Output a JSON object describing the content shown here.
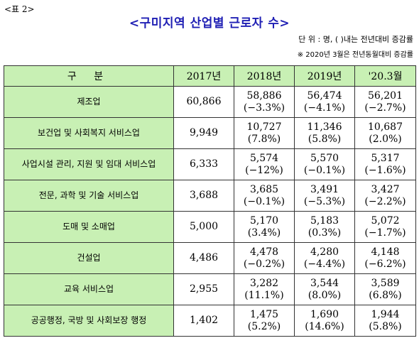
{
  "doc": {
    "label": "<표 2>",
    "title": "<구미지역 산업별 근로자 수>",
    "unit": "단 위 : 명, ( )내는 전년대비 증감률",
    "note": "※ 2020년 3월은 전년동월대비 증감률"
  },
  "table": {
    "headers": [
      "구 분",
      "2017년",
      "2018년",
      "2019년",
      "'20.3월"
    ],
    "rows": [
      {
        "category": "제조업",
        "v2017": "60,866",
        "v2018": "58,886",
        "c2018": "(−3.3%)",
        "v2019": "56,474",
        "c2019": "(−4.1%)",
        "v2020": "56,201",
        "c2020": "(−2.7%)"
      },
      {
        "category": "보건업 및 사회복지 서비스업",
        "v2017": "9,949",
        "v2018": "10,727",
        "c2018": "(7.8%)",
        "v2019": "11,346",
        "c2019": "(5.8%)",
        "v2020": "10,687",
        "c2020": "(2.0%)"
      },
      {
        "category": "사업시설 관리, 지원 및 임대 서비스업",
        "v2017": "6,333",
        "v2018": "5,574",
        "c2018": "(−12%)",
        "v2019": "5,570",
        "c2019": "(−0.1%)",
        "v2020": "5,317",
        "c2020": "(−1.6%)"
      },
      {
        "category": "전문, 과학 및 기술 서비스업",
        "v2017": "3,688",
        "v2018": "3,685",
        "c2018": "(−0.1%)",
        "v2019": "3,491",
        "c2019": "(−5.3%)",
        "v2020": "3,427",
        "c2020": "(−2.2%)"
      },
      {
        "category": "도매 및 소매업",
        "v2017": "5,000",
        "v2018": "5,170",
        "c2018": "(3.4%)",
        "v2019": "5,183",
        "c2019": "(0.3%)",
        "v2020": "5,072",
        "c2020": "(−1.7%)"
      },
      {
        "category": "건설업",
        "v2017": "4,486",
        "v2018": "4,478",
        "c2018": "(−0.2%)",
        "v2019": "4,280",
        "c2019": "(−4.4%)",
        "v2020": "4,148",
        "c2020": "(−6.2%)"
      },
      {
        "category": "교육 서비스업",
        "v2017": "2,955",
        "v2018": "3,282",
        "c2018": "(11.1%)",
        "v2019": "3,544",
        "c2019": "(8.0%)",
        "v2020": "3,589",
        "c2020": "(6.8%)"
      },
      {
        "category": "공공행정, 국방 및 사회보장 행정",
        "v2017": "1,402",
        "v2018": "1,475",
        "c2018": "(5.2%)",
        "v2019": "1,690",
        "c2019": "(14.6%)",
        "v2020": "1,944",
        "c2020": "(5.8%)"
      }
    ]
  },
  "colors": {
    "header_bg": "#c8f0b4",
    "title": "#1f1fb4"
  }
}
